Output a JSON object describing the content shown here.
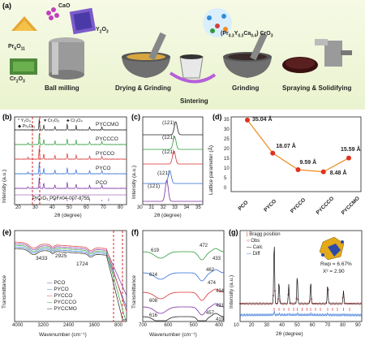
{
  "panel_a": {
    "label": "(a)",
    "precursors": [
      "Pr",
      "6",
      "O",
      "11",
      "CaO",
      "Y",
      "2",
      "O",
      "3",
      "Cr",
      "2",
      "O",
      "3"
    ],
    "product": "(Pr",
    "product_sub1": "0.3",
    "product_mid": "Y",
    "product_sub2": "0.3",
    "product_mid2": "Ca",
    "product_sub3": "0.4",
    "product_end": ") CrO",
    "product_sub4": "3",
    "steps": [
      "Ball milling",
      "Drying & Grinding",
      "Sintering",
      "Grinding",
      "Spraying & Solidifying"
    ]
  },
  "panel_b": {
    "label": "(b)",
    "legend": [
      "Y₂O₃",
      "Pr₆O₁₁",
      "Cr₂O₃",
      "Cr₃O₄"
    ],
    "legend_syms": [
      "*",
      "◆",
      "♥",
      "♣"
    ],
    "series": [
      "PYCCMO",
      "PYCCCO",
      "PYCCO",
      "PYCO",
      "PCO"
    ],
    "reference": "PrCrO₃ PDF#04-007-8755",
    "ylabel": "Intensity (a.u.)",
    "xlabel": "2θ (degree)",
    "xticks": [
      "20",
      "30",
      "40",
      "50",
      "60",
      "70",
      "80"
    ]
  },
  "panel_c": {
    "label": "(c)",
    "peak": "(121)",
    "ylabel": "Intensity (a.u.)",
    "xlabel": "2θ (degree)",
    "xticks": [
      "30",
      "31",
      "32",
      "33",
      "34",
      "35"
    ]
  },
  "panel_d": {
    "label": "(d)",
    "ylabel": "Lattice parameter (Å)",
    "yticks": [
      "0",
      "5",
      "10",
      "15",
      "20",
      "25",
      "30",
      "35"
    ],
    "categories": [
      "PCO",
      "PYCO",
      "PYCCO",
      "PYCCCO",
      "PYCCMO"
    ],
    "annotations": [
      "35.04 Å",
      "18.07 Å",
      "9.59 Å",
      "8.48 Å",
      "15.59 Å"
    ]
  },
  "panel_e": {
    "label": "(e)",
    "ylabel": "Transmittance",
    "xlabel": "Wavenumber (cm⁻¹)",
    "xticks": [
      "4000",
      "3200",
      "2400",
      "1600",
      "800"
    ],
    "annotations": [
      "3433",
      "2925",
      "1724"
    ],
    "legend": [
      "PCO",
      "PYCO",
      "PYCCO",
      "PYCCCO",
      "PYCCMO"
    ]
  },
  "panel_f": {
    "label": "(f)",
    "ylabel": "Transmittance",
    "xlabel": "Wavenumber (cm⁻¹)",
    "xticks": [
      "700",
      "600",
      "500",
      "400"
    ],
    "annotations": [
      "619",
      "472",
      "433",
      "614",
      "462",
      "608",
      "474",
      "434",
      "616",
      "457",
      "431",
      "419"
    ]
  },
  "panel_g": {
    "label": "(g)",
    "ylabel": "Intensity (a.u.)",
    "xlabel": "2θ (degree)",
    "xticks": [
      "10",
      "20",
      "30",
      "40",
      "50",
      "60",
      "70",
      "80",
      "90"
    ],
    "legend": [
      "Bragg position",
      "Obs",
      "Calc",
      "Diff"
    ],
    "rwp": "Rwp = 6.67%",
    "chi": "X² = 2.90"
  },
  "chart_data": [
    {
      "type": "line",
      "title": "",
      "xlabel": "2θ (degree)",
      "ylabel": "Intensity (a.u.)",
      "series": [
        {
          "name": "PYCCMO"
        },
        {
          "name": "PYCCCO"
        },
        {
          "name": "PYCCO"
        },
        {
          "name": "PYCO"
        },
        {
          "name": "PCO"
        }
      ],
      "xlim": [
        15,
        85
      ]
    },
    {
      "type": "line",
      "title": "",
      "xlabel": "2θ (degree)",
      "ylabel": "Intensity (a.u.)",
      "xlim": [
        30,
        35
      ]
    },
    {
      "type": "line",
      "title": "",
      "categories": [
        "PCO",
        "PYCO",
        "PYCCO",
        "PYCCCO",
        "PYCCMO"
      ],
      "values": [
        35.04,
        18.07,
        9.59,
        8.48,
        15.59
      ],
      "ylabel": "Lattice parameter (Å)",
      "ylim": [
        0,
        35
      ]
    },
    {
      "type": "line",
      "title": "",
      "xlabel": "Wavenumber (cm⁻¹)",
      "ylabel": "Transmittance",
      "series": [
        {
          "name": "PCO"
        },
        {
          "name": "PYCO"
        },
        {
          "name": "PYCCO"
        },
        {
          "name": "PYCCCO"
        },
        {
          "name": "PYCCMO"
        }
      ],
      "xlim": [
        4000,
        800
      ]
    },
    {
      "type": "line",
      "title": "",
      "xlabel": "Wavenumber (cm⁻¹)",
      "ylabel": "Transmittance",
      "xlim": [
        700,
        400
      ]
    },
    {
      "type": "line",
      "title": "",
      "xlabel": "2θ (degree)",
      "ylabel": "Intensity (a.u.)",
      "series": [
        {
          "name": "Obs"
        },
        {
          "name": "Calc"
        },
        {
          "name": "Diff"
        }
      ],
      "xlim": [
        10,
        90
      ]
    }
  ],
  "colors": {
    "PCO": "#7a2fa0",
    "PYCO": "#2f6fd6",
    "PYCCO": "#d83030",
    "PYCCCO": "#2e9a3a",
    "PYCCMO": "#222222",
    "orange": "#f08a20",
    "dash": "#d01818"
  }
}
